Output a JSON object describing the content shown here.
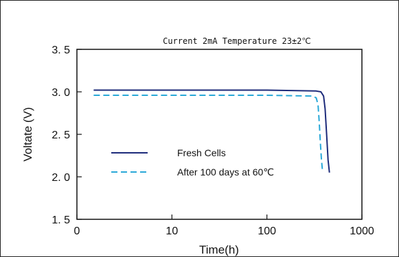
{
  "chart_data": {
    "type": "line",
    "title": "Current 2mA  Temperature 23±2℃",
    "xlabel": "Time(h)",
    "ylabel": "Voltate (V)",
    "x_scale": "log",
    "xlim": [
      1,
      1000
    ],
    "ylim": [
      1.5,
      3.5
    ],
    "x_ticks": [
      1,
      10,
      100,
      1000
    ],
    "x_tick_labels": [
      "0",
      "10",
      "100",
      "1000"
    ],
    "y_ticks": [
      1.5,
      2.0,
      2.5,
      3.0,
      3.5
    ],
    "y_tick_labels": [
      "1. 5",
      "2. 0",
      "2. 5",
      "3. 0",
      "3. 5"
    ],
    "grid": false,
    "legend_position": "lower-left",
    "series": [
      {
        "name": "Fresh Cells",
        "color": "#1c2a7a",
        "dash": "solid",
        "x": [
          1.5,
          10,
          100,
          330,
          370,
          395,
          410,
          425,
          440,
          455
        ],
        "y": [
          3.02,
          3.02,
          3.02,
          3.01,
          3.0,
          2.95,
          2.8,
          2.5,
          2.2,
          2.05
        ]
      },
      {
        "name": "After 100 days at 60℃",
        "color": "#29a8d8",
        "dash": "dashed",
        "x": [
          1.5,
          10,
          100,
          300,
          330,
          345,
          355,
          365,
          375,
          385
        ],
        "y": [
          2.96,
          2.96,
          2.96,
          2.95,
          2.93,
          2.85,
          2.65,
          2.4,
          2.2,
          2.06
        ]
      }
    ]
  }
}
